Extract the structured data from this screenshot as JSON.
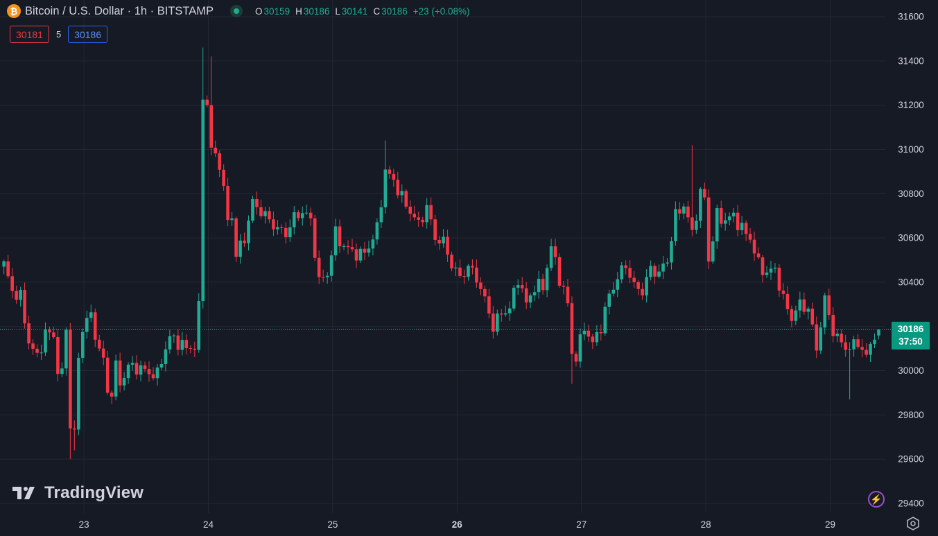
{
  "header": {
    "coin_symbol": "₿",
    "title": "Bitcoin / U.S. Dollar · 1h · BITSTAMP",
    "open_label": "O",
    "open": "30159",
    "high_label": "H",
    "high": "30186",
    "low_label": "L",
    "low": "30141",
    "close_label": "C",
    "close": "30186",
    "change": "+23 (+0.08%)"
  },
  "order": {
    "sell_price": "30181",
    "spread": "5",
    "buy_price": "30186"
  },
  "last_price": {
    "price": "30186",
    "countdown": "37:50"
  },
  "branding": {
    "logo_text": "TradingView"
  },
  "colors": {
    "up": "#22ab94",
    "down": "#f23645",
    "background": "#161a25",
    "grid": "#232835",
    "axis_text": "#d1d4dc",
    "last_line": "#22ab94"
  },
  "icons": {
    "market_status": "market-open-dot-icon",
    "bolt": "bolt-icon",
    "settings": "gear-icon",
    "coin": "bitcoin-icon"
  },
  "chart_data": {
    "type": "candlestick",
    "ylim": [
      29360,
      31640
    ],
    "y_ticks": [
      29400,
      29600,
      29800,
      30000,
      30200,
      30400,
      30600,
      30800,
      31000,
      31200,
      31400,
      31600
    ],
    "x_ticks": [
      {
        "label": "23",
        "index": 19.3,
        "bold": false
      },
      {
        "label": "24",
        "index": 49.3,
        "bold": false
      },
      {
        "label": "25",
        "index": 79.3,
        "bold": false
      },
      {
        "label": "26",
        "index": 109.3,
        "bold": true
      },
      {
        "label": "27",
        "index": 139.3,
        "bold": false
      },
      {
        "label": "28",
        "index": 169.3,
        "bold": false
      },
      {
        "label": "29",
        "index": 199.3,
        "bold": false
      }
    ],
    "last_price": 30186,
    "candles": []
  }
}
